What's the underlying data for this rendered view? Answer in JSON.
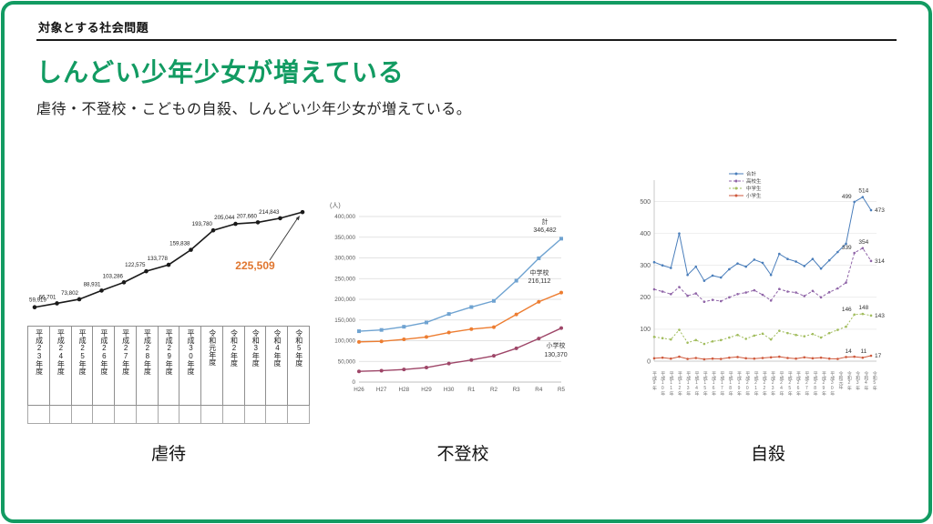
{
  "colors": {
    "accent": "#129b62",
    "highlight": "#e0762f"
  },
  "header": {
    "kicker": "対象とする社会問題"
  },
  "title": {
    "text": "しんどい少年少女が増えている"
  },
  "subtitle": {
    "text": "虐待・不登校・こどもの自殺、しんどい少年少女が増えている。"
  },
  "captions": {
    "abuse": "虐待",
    "futoko": "不登校",
    "suicide": "自殺"
  },
  "chart_data": [
    {
      "id": "abuse",
      "type": "line",
      "title": "虐待",
      "categories": [
        "平成23年度",
        "平成24年度",
        "平成25年度",
        "平成26年度",
        "平成27年度",
        "平成28年度",
        "平成29年度",
        "平成30年度",
        "令和元年度",
        "令和2年度",
        "令和3年度",
        "令和4年度",
        "令和5年度"
      ],
      "values": [
        59919,
        66701,
        73802,
        88931,
        103286,
        122575,
        133778,
        159838,
        193780,
        205044,
        207660,
        214843,
        225509
      ],
      "labels": [
        "59,919",
        "66,701",
        "73,802",
        "88,931",
        "103,286",
        "122,575",
        "133,778",
        "159,838",
        "193,780",
        "205,044",
        "207,660",
        "214,843"
      ],
      "highlight_label": "225,509",
      "line_color": "#1a1a1a",
      "ylim": [
        50000,
        240000
      ]
    },
    {
      "id": "futoko",
      "type": "line",
      "title": "不登校",
      "unit_label": "(人)",
      "categories": [
        "H26",
        "H27",
        "H28",
        "H29",
        "H30",
        "R1",
        "R2",
        "R3",
        "R4",
        "R5"
      ],
      "ylim": [
        0,
        400000
      ],
      "ytick_step": 50000,
      "series": [
        {
          "name": "計",
          "color": "#6fa3d1",
          "end_value": "346,482",
          "values": [
            122897,
            125991,
            133683,
            144031,
            164528,
            181272,
            196127,
            244940,
            299048,
            346482
          ]
        },
        {
          "name": "中学校",
          "color": "#ed7d31",
          "end_value": "216,112",
          "values": [
            97033,
            98408,
            103235,
            108999,
            119687,
            127922,
            132777,
            163442,
            193936,
            216112
          ]
        },
        {
          "name": "小学校",
          "color": "#9e4668",
          "end_value": "130,370",
          "values": [
            25864,
            27583,
            30448,
            35032,
            44841,
            53350,
            63350,
            81498,
            105112,
            130370
          ]
        }
      ]
    },
    {
      "id": "suicide",
      "type": "line",
      "title": "自殺",
      "ylim": [
        0,
        550
      ],
      "yticks": [
        0,
        100,
        200,
        300,
        400,
        500
      ],
      "categories": [
        "平成9年",
        "平成10年",
        "平成11年",
        "平成12年",
        "平成13年",
        "平成14年",
        "平成15年",
        "平成16年",
        "平成17年",
        "平成18年",
        "平成19年",
        "平成20年",
        "平成21年",
        "平成22年",
        "平成23年",
        "平成24年",
        "平成25年",
        "平成26年",
        "平成27年",
        "平成28年",
        "平成29年",
        "平成30年",
        "令和元年",
        "令和2年",
        "令和3年",
        "令和4年",
        "令和5年"
      ],
      "series": [
        {
          "name": "合計",
          "color": "#4a7ebb",
          "end_labels": [
            "499",
            "514",
            "473"
          ],
          "values": [
            310,
            300,
            292,
            400,
            270,
            296,
            252,
            268,
            262,
            288,
            306,
            296,
            318,
            308,
            270,
            336,
            320,
            312,
            298,
            320,
            290,
            316,
            342,
            368,
            499,
            514,
            473
          ]
        },
        {
          "name": "高校生",
          "color": "#9065a8",
          "dash": "3 2",
          "end_labels": [
            "339",
            "354",
            "314"
          ],
          "values": [
            225,
            218,
            210,
            232,
            205,
            212,
            186,
            192,
            188,
            200,
            210,
            215,
            222,
            208,
            190,
            226,
            218,
            215,
            204,
            220,
            200,
            216,
            228,
            246,
            339,
            354,
            314
          ]
        },
        {
          "name": "中学生",
          "color": "#a2bd5e",
          "dash": "2 2",
          "end_labels": [
            "146",
            "148",
            "143"
          ],
          "values": [
            76,
            72,
            68,
            98,
            58,
            66,
            54,
            62,
            66,
            74,
            82,
            70,
            80,
            86,
            68,
            95,
            88,
            82,
            78,
            85,
            74,
            88,
            98,
            108,
            146,
            148,
            143
          ]
        },
        {
          "name": "小学生",
          "color": "#cf5a3d",
          "end_labels": [
            "14",
            "11",
            "17"
          ],
          "values": [
            9,
            11,
            8,
            14,
            7,
            10,
            6,
            8,
            7,
            11,
            13,
            9,
            8,
            10,
            12,
            14,
            10,
            8,
            12,
            9,
            11,
            8,
            7,
            13,
            14,
            11,
            17
          ]
        }
      ]
    }
  ]
}
